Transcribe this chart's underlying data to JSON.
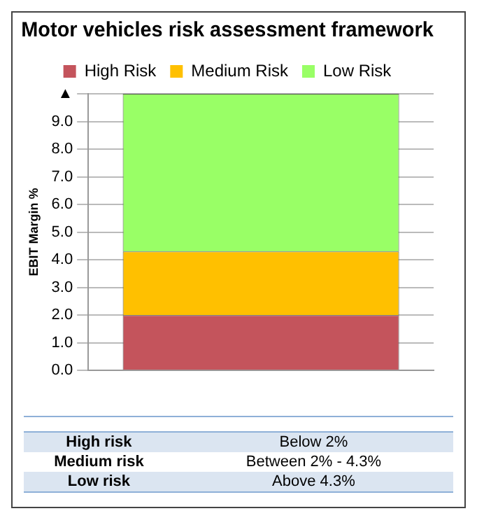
{
  "chart_data": {
    "type": "bar",
    "title": "Motor vehicles risk assessment framework",
    "ylabel": "EBIT Margin %",
    "categories": [
      null
    ],
    "stacked": true,
    "series": [
      {
        "name": "High Risk",
        "color": "#c4545c",
        "values": [
          2.0
        ]
      },
      {
        "name": "Medium Risk",
        "color": "#ffc000",
        "values": [
          2.3
        ]
      },
      {
        "name": "Low Risk",
        "color": "#99ff66",
        "values": [
          5.7
        ]
      }
    ],
    "ylim": [
      0,
      10
    ],
    "yticks": [
      {
        "value": 0,
        "label": "0.0"
      },
      {
        "value": 1,
        "label": "1.0"
      },
      {
        "value": 2,
        "label": "2.0"
      },
      {
        "value": 3,
        "label": "3.0"
      },
      {
        "value": 4,
        "label": "4.0"
      },
      {
        "value": 5,
        "label": "5.0"
      },
      {
        "value": 6,
        "label": "6.0"
      },
      {
        "value": 7,
        "label": "7.0"
      },
      {
        "value": 8,
        "label": "8.0"
      },
      {
        "value": 9,
        "label": "9.0"
      },
      {
        "value": 10,
        "label": "▲"
      }
    ],
    "grid": "y",
    "legend": "top",
    "annotations": [
      "High risk",
      "Below 2%",
      "Medium risk",
      "Between 2% - 4.3%",
      "Low risk",
      "Above 4.3%"
    ]
  }
}
